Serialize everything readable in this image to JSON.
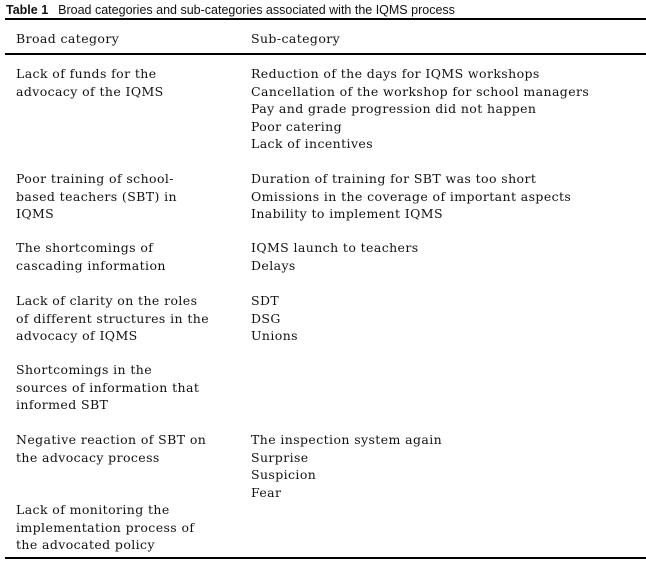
{
  "caption": {
    "label": "Table 1",
    "text": "Broad categories and sub-categories associated with the IQMS process"
  },
  "headers": {
    "broad": "Broad category",
    "sub": "Sub-category"
  },
  "rows": [
    {
      "broad": [
        "Lack of funds for the",
        "advocacy of the IQMS"
      ],
      "sub": [
        "Reduction of the days for IQMS workshops",
        "Cancellation of the workshop for school managers",
        "Pay and grade progression did not happen",
        "Poor catering",
        "Lack of incentives"
      ]
    },
    {
      "broad": [
        "Poor training of school-",
        "based teachers (SBT) in",
        "IQMS"
      ],
      "sub": [
        "Duration of training for SBT was too short",
        "Omissions in the coverage of important aspects",
        "Inability to implement IQMS"
      ]
    },
    {
      "broad": [
        "The shortcomings of",
        "cascading information"
      ],
      "sub": [
        "IQMS launch to teachers",
        "Delays"
      ]
    },
    {
      "broad": [
        "Lack of clarity on the roles",
        "of different structures in the",
        "advocacy of IQMS"
      ],
      "sub": [
        "SDT",
        "DSG",
        "Unions"
      ]
    },
    {
      "broad": [
        "Shortcomings in the",
        "sources of information that",
        "informed SBT"
      ],
      "sub": []
    },
    {
      "broad": [
        "Negative reaction of SBT on",
        "the advocacy process"
      ],
      "sub": [
        "The inspection system again",
        "Surprise",
        "Suspicion",
        "Fear"
      ]
    },
    {
      "broad": [
        "Lack of monitoring the",
        "implementation process of",
        "the advocated policy"
      ],
      "sub": []
    }
  ]
}
